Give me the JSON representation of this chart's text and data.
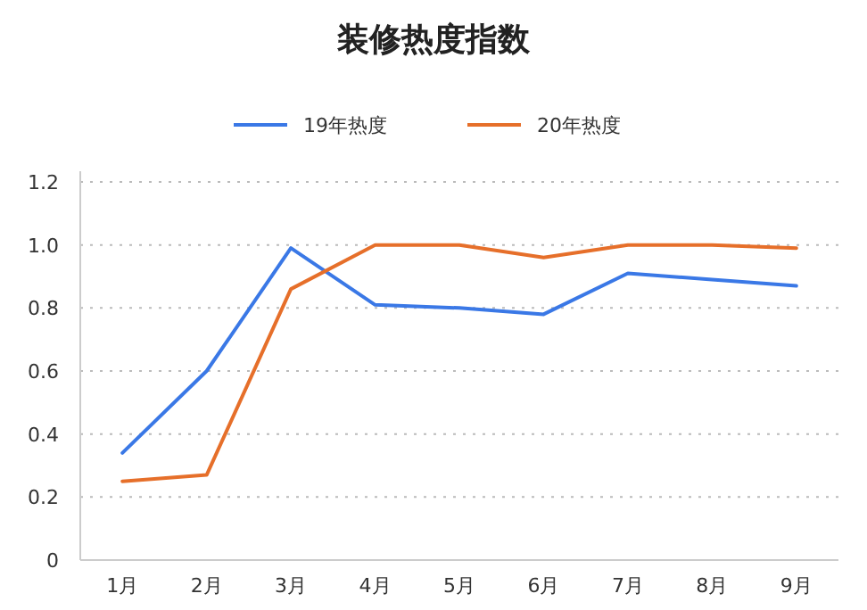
{
  "chart_data": {
    "type": "line",
    "title": "装修热度指数",
    "categories": [
      "1月",
      "2月",
      "3月",
      "4月",
      "5月",
      "6月",
      "7月",
      "8月",
      "9月"
    ],
    "series": [
      {
        "name": "19年热度",
        "color": "#3a78e6",
        "values": [
          0.34,
          0.6,
          0.99,
          0.81,
          0.8,
          0.78,
          0.91,
          0.89,
          0.87
        ]
      },
      {
        "name": "20年热度",
        "color": "#e66f2a",
        "values": [
          0.25,
          0.27,
          0.86,
          1.0,
          1.0,
          0.96,
          1.0,
          1.0,
          0.99
        ]
      }
    ],
    "ylim": [
      0,
      1.2
    ],
    "yticks": [
      0,
      0.2,
      0.4,
      0.6,
      0.8,
      {
        "value": 1,
        "label": "1.0"
      },
      1.2
    ],
    "grid": "y",
    "legend": "top",
    "marker": "none",
    "line_style": "solid"
  }
}
